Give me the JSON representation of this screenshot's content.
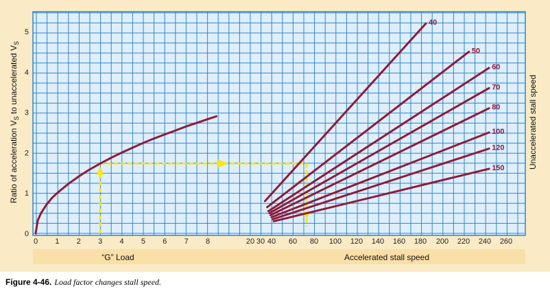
{
  "caption": {
    "label": "Figure 4-46.",
    "text": "Load factor changes stall speed."
  },
  "colors": {
    "background": "#faebc6",
    "plot_area": "#deeefa",
    "grid": "#2f86c8",
    "curve": "#8c1c3a",
    "guide": "#f7e612"
  },
  "chart_data": [
    {
      "type": "line",
      "name": "load-factor-panel",
      "xlabel": "“G” Load",
      "ylabel": "Ratio of acceleration V",
      "ylabel_sub1": "S",
      "ylabel_mid": " to unaccelerated V",
      "ylabel_sub2": "S",
      "xlim": [
        0,
        8.4
      ],
      "ylim": [
        0,
        5.5
      ],
      "x_ticks": [
        0,
        1,
        2,
        3,
        4,
        5,
        6,
        7,
        8
      ],
      "y_ticks": [
        0,
        1,
        2,
        3,
        4,
        5
      ],
      "series": [
        {
          "x": [
            0,
            0.1,
            0.25,
            0.5,
            0.75,
            1,
            1.5,
            2,
            2.5,
            3,
            3.5,
            4,
            4.5,
            5,
            5.5,
            6,
            6.5,
            7,
            7.5,
            8,
            8.4
          ],
          "y": [
            0,
            0.32,
            0.5,
            0.71,
            0.87,
            1.0,
            1.22,
            1.41,
            1.58,
            1.73,
            1.87,
            2.0,
            2.12,
            2.24,
            2.35,
            2.45,
            2.55,
            2.65,
            2.74,
            2.83,
            2.9
          ]
        }
      ],
      "annotations": [
        {
          "type": "guide-arrow",
          "description": "3 G reads ratio 1.73",
          "x": [
            3,
            3
          ],
          "y": [
            0,
            1.73
          ]
        }
      ]
    },
    {
      "type": "line",
      "name": "accelerated-stall-panel",
      "xlabel": "Accelerated stall speed",
      "ylabel": "Unaccelerated stall speed",
      "xlim": [
        15,
        265
      ],
      "ylim": [
        0,
        5.5
      ],
      "x_ticks": [
        20,
        30,
        40,
        60,
        80,
        100,
        120,
        140,
        160,
        180,
        200,
        220,
        240,
        260
      ],
      "x_tick_values": [
        20,
        30,
        40,
        60,
        80,
        100,
        120,
        140,
        160,
        180,
        200,
        220,
        240,
        260
      ],
      "series": [
        {
          "name": "40",
          "x": [
            34,
            185
          ],
          "y": [
            0.8,
            5.2
          ]
        },
        {
          "name": "50",
          "x": [
            36,
            225
          ],
          "y": [
            0.65,
            4.5
          ]
        },
        {
          "name": "60",
          "x": [
            37,
            244
          ],
          "y": [
            0.55,
            4.1
          ]
        },
        {
          "name": "70",
          "x": [
            38,
            244
          ],
          "y": [
            0.5,
            3.6
          ]
        },
        {
          "name": "80",
          "x": [
            39,
            244
          ],
          "y": [
            0.45,
            3.1
          ]
        },
        {
          "name": "100",
          "x": [
            40,
            244
          ],
          "y": [
            0.4,
            2.5
          ]
        },
        {
          "name": "120",
          "x": [
            41,
            244
          ],
          "y": [
            0.35,
            2.1
          ]
        },
        {
          "name": "150",
          "x": [
            42,
            244
          ],
          "y": [
            0.3,
            1.6
          ]
        }
      ],
      "annotations": [
        {
          "type": "guide-arrow",
          "description": "ratio 1.73 across to the 40 line, down to about 73",
          "x": [
            73,
            73
          ],
          "y": [
            1.73,
            0
          ]
        }
      ]
    }
  ]
}
